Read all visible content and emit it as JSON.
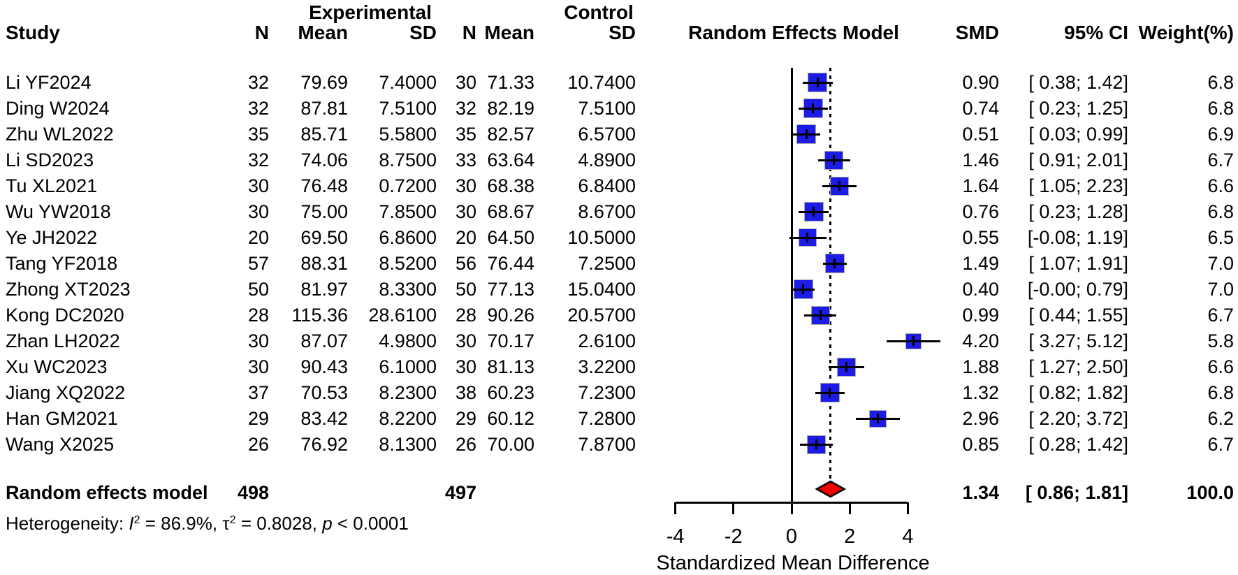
{
  "header": {
    "study": "Study",
    "experimental": "Experimental",
    "control": "Control",
    "n": "N",
    "mean": "Mean",
    "sd": "SD",
    "plot_title": "Random Effects Model",
    "smd": "SMD",
    "ci": "95% CI",
    "weight": "Weight(%)"
  },
  "heterogeneity": {
    "prefix": "Heterogeneity: ",
    "i": "I",
    "i_sup": "2",
    "seg1": " = 86.9%, ",
    "tau": "τ",
    "tau_sup": "2",
    "seg2": " = 0.8028, ",
    "p": "p",
    "seg3": " < 0.0001"
  },
  "colors": {
    "square": "#1c1ce6",
    "square_border": "#ababab",
    "diamond_fill": "#f00000",
    "diamond_border": "#000000",
    "line": "#000000"
  },
  "chart_data": {
    "type": "forest",
    "effect_measure": "Standardized Mean Difference",
    "axis": {
      "min": -4,
      "max": 4,
      "ticks": [
        -4,
        -2,
        0,
        2,
        4
      ],
      "tick_labels": [
        "-4",
        "-2",
        "0",
        "2",
        "4"
      ],
      "title": "Standardized Mean Difference"
    },
    "studies": [
      {
        "label": "Li YF2024",
        "n_exp": "32",
        "mean_exp": "79.69",
        "sd_exp": "7.4000",
        "n_ctrl": "30",
        "mean_ctrl": "71.33",
        "sd_ctrl": "10.7400",
        "smd": 0.9,
        "smd_text": "0.90",
        "ci_lo": 0.38,
        "ci_hi": 1.42,
        "ci_text": "[ 0.38; 1.42]",
        "weight": 6.8,
        "weight_text": "6.8"
      },
      {
        "label": "Ding W2024",
        "n_exp": "32",
        "mean_exp": "87.81",
        "sd_exp": "7.5100",
        "n_ctrl": "32",
        "mean_ctrl": "82.19",
        "sd_ctrl": "7.5100",
        "smd": 0.74,
        "smd_text": "0.74",
        "ci_lo": 0.23,
        "ci_hi": 1.25,
        "ci_text": "[ 0.23; 1.25]",
        "weight": 6.8,
        "weight_text": "6.8"
      },
      {
        "label": "Zhu WL2022",
        "n_exp": "35",
        "mean_exp": "85.71",
        "sd_exp": "5.5800",
        "n_ctrl": "35",
        "mean_ctrl": "82.57",
        "sd_ctrl": "6.5700",
        "smd": 0.51,
        "smd_text": "0.51",
        "ci_lo": 0.03,
        "ci_hi": 0.99,
        "ci_text": "[ 0.03; 0.99]",
        "weight": 6.9,
        "weight_text": "6.9"
      },
      {
        "label": "Li SD2023",
        "n_exp": "32",
        "mean_exp": "74.06",
        "sd_exp": "8.7500",
        "n_ctrl": "33",
        "mean_ctrl": "63.64",
        "sd_ctrl": "4.8900",
        "smd": 1.46,
        "smd_text": "1.46",
        "ci_lo": 0.91,
        "ci_hi": 2.01,
        "ci_text": "[ 0.91; 2.01]",
        "weight": 6.7,
        "weight_text": "6.7"
      },
      {
        "label": "Tu XL2021",
        "n_exp": "30",
        "mean_exp": "76.48",
        "sd_exp": "0.7200",
        "n_ctrl": "30",
        "mean_ctrl": "68.38",
        "sd_ctrl": "6.8400",
        "smd": 1.64,
        "smd_text": "1.64",
        "ci_lo": 1.05,
        "ci_hi": 2.23,
        "ci_text": "[ 1.05; 2.23]",
        "weight": 6.6,
        "weight_text": "6.6"
      },
      {
        "label": "Wu YW2018",
        "n_exp": "30",
        "mean_exp": "75.00",
        "sd_exp": "7.8500",
        "n_ctrl": "30",
        "mean_ctrl": "68.67",
        "sd_ctrl": "8.6700",
        "smd": 0.76,
        "smd_text": "0.76",
        "ci_lo": 0.23,
        "ci_hi": 1.28,
        "ci_text": "[ 0.23; 1.28]",
        "weight": 6.8,
        "weight_text": "6.8"
      },
      {
        "label": "Ye JH2022",
        "n_exp": "20",
        "mean_exp": "69.50",
        "sd_exp": "6.8600",
        "n_ctrl": "20",
        "mean_ctrl": "64.50",
        "sd_ctrl": "10.5000",
        "smd": 0.55,
        "smd_text": "0.55",
        "ci_lo": -0.08,
        "ci_hi": 1.19,
        "ci_text": "[-0.08; 1.19]",
        "weight": 6.5,
        "weight_text": "6.5"
      },
      {
        "label": "Tang YF2018",
        "n_exp": "57",
        "mean_exp": "88.31",
        "sd_exp": "8.5200",
        "n_ctrl": "56",
        "mean_ctrl": "76.44",
        "sd_ctrl": "7.2500",
        "smd": 1.49,
        "smd_text": "1.49",
        "ci_lo": 1.07,
        "ci_hi": 1.91,
        "ci_text": "[ 1.07; 1.91]",
        "weight": 7.0,
        "weight_text": "7.0"
      },
      {
        "label": "Zhong XT2023",
        "n_exp": "50",
        "mean_exp": "81.97",
        "sd_exp": "8.3300",
        "n_ctrl": "50",
        "mean_ctrl": "77.13",
        "sd_ctrl": "15.0400",
        "smd": 0.4,
        "smd_text": "0.40",
        "ci_lo": 0.0,
        "ci_hi": 0.79,
        "ci_text": "[-0.00; 0.79]",
        "weight": 7.0,
        "weight_text": "7.0"
      },
      {
        "label": "Kong DC2020",
        "n_exp": "28",
        "mean_exp": "115.36",
        "sd_exp": "28.6100",
        "n_ctrl": "28",
        "mean_ctrl": "90.26",
        "sd_ctrl": "20.5700",
        "smd": 0.99,
        "smd_text": "0.99",
        "ci_lo": 0.44,
        "ci_hi": 1.55,
        "ci_text": "[ 0.44; 1.55]",
        "weight": 6.7,
        "weight_text": "6.7"
      },
      {
        "label": "Zhan LH2022",
        "n_exp": "30",
        "mean_exp": "87.07",
        "sd_exp": "4.9800",
        "n_ctrl": "30",
        "mean_ctrl": "70.17",
        "sd_ctrl": "2.6100",
        "smd": 4.2,
        "smd_text": "4.20",
        "ci_lo": 3.27,
        "ci_hi": 5.12,
        "ci_text": "[ 3.27; 5.12]",
        "weight": 5.8,
        "weight_text": "5.8"
      },
      {
        "label": "Xu WC2023",
        "n_exp": "30",
        "mean_exp": "90.43",
        "sd_exp": "6.1000",
        "n_ctrl": "30",
        "mean_ctrl": "81.13",
        "sd_ctrl": "3.2200",
        "smd": 1.88,
        "smd_text": "1.88",
        "ci_lo": 1.27,
        "ci_hi": 2.5,
        "ci_text": "[ 1.27; 2.50]",
        "weight": 6.6,
        "weight_text": "6.6"
      },
      {
        "label": "Jiang XQ2022",
        "n_exp": "37",
        "mean_exp": "70.53",
        "sd_exp": "8.2300",
        "n_ctrl": "38",
        "mean_ctrl": "60.23",
        "sd_ctrl": "7.2300",
        "smd": 1.32,
        "smd_text": "1.32",
        "ci_lo": 0.82,
        "ci_hi": 1.82,
        "ci_text": "[ 0.82; 1.82]",
        "weight": 6.8,
        "weight_text": "6.8"
      },
      {
        "label": "Han GM2021",
        "n_exp": "29",
        "mean_exp": "83.42",
        "sd_exp": "8.2200",
        "n_ctrl": "29",
        "mean_ctrl": "60.12",
        "sd_ctrl": "7.2800",
        "smd": 2.96,
        "smd_text": "2.96",
        "ci_lo": 2.2,
        "ci_hi": 3.72,
        "ci_text": "[ 2.20; 3.72]",
        "weight": 6.2,
        "weight_text": "6.2"
      },
      {
        "label": "Wang X2025",
        "n_exp": "26",
        "mean_exp": "76.92",
        "sd_exp": "8.1300",
        "n_ctrl": "26",
        "mean_ctrl": "70.00",
        "sd_ctrl": "7.8700",
        "smd": 0.85,
        "smd_text": "0.85",
        "ci_lo": 0.28,
        "ci_hi": 1.42,
        "ci_text": "[ 0.28; 1.42]",
        "weight": 6.7,
        "weight_text": "6.7"
      }
    ],
    "summary": {
      "label": "Random effects model",
      "n_exp": "498",
      "n_ctrl": "497",
      "smd": 1.34,
      "smd_text": "1.34",
      "ci_lo": 0.86,
      "ci_hi": 1.81,
      "ci_text": "[ 0.86; 1.81]",
      "weight_text": "100.0",
      "heterogeneity_text": "Heterogeneity: I2 = 86.9%, τ2 = 0.8028, p < 0.0001"
    }
  }
}
